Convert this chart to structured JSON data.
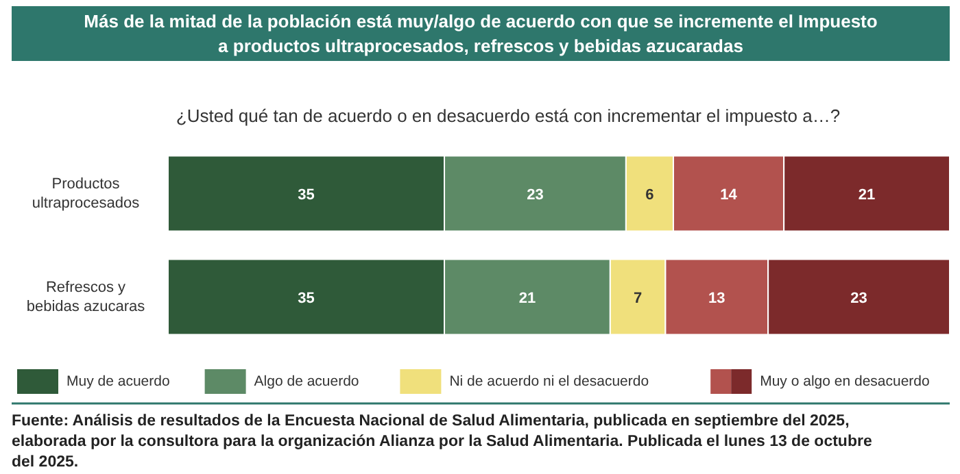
{
  "chart_data": {
    "type": "bar",
    "orientation": "horizontal",
    "stacked": true,
    "data_labels": true,
    "legend": "bottom",
    "title": "Más de la mitad de la población está muy/algo de acuerdo con que se incremente el Impuesto a productos ultraprocesados, refrescos y bebidas azucaradas",
    "subtitle": "¿Usted qué tan de acuerdo o en desacuerdo está con incrementar el impuesto a…?",
    "categories": [
      "Productos ultraprocesados",
      "Refrescos y bebidas azucaras"
    ],
    "series": [
      {
        "name": "Muy de acuerdo",
        "color": "#2f5a39",
        "values": [
          35,
          35
        ]
      },
      {
        "name": "Algo de acuerdo",
        "color": "#5d8a66",
        "values": [
          23,
          21
        ]
      },
      {
        "name": "Ni de acuerdo ni el desacuerdo",
        "color": "#f0e07c",
        "values": [
          6,
          7
        ]
      },
      {
        "name": "Muy o algo en desacuerdo",
        "color": "#b2524e",
        "values": [
          14,
          13
        ]
      },
      {
        "color": "#7c2a2b",
        "values": [
          21,
          23
        ]
      }
    ],
    "annotations": [
      "Fuente: Análisis de resultados de la Encuesta Nacional de Salud Alimentaria, publicada en septiembre del 2025, elaborada por la consultora para la organización Alianza por la Salud Alimentaria. Publicada el lunes 13 de octubre del 2025."
    ]
  }
}
